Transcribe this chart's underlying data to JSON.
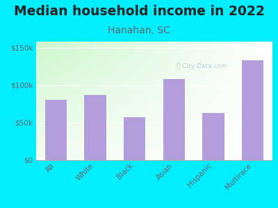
{
  "title": "Median household income in 2022",
  "subtitle": "Hanahan, SC",
  "categories": [
    "All",
    "White",
    "Black",
    "Asian",
    "Hispanic",
    "Multirace"
  ],
  "values": [
    80000,
    87000,
    57000,
    108000,
    63000,
    133000
  ],
  "bar_color": "#b39ddb",
  "background_outer": "#00eeff",
  "title_fontsize": 13.5,
  "subtitle_fontsize": 10,
  "subtitle_color": "#666666",
  "title_color": "#222222",
  "yticks": [
    0,
    50000,
    100000,
    150000
  ],
  "ytick_labels": [
    "$0",
    "$50k",
    "$100k",
    "$150k"
  ],
  "ylim": [
    0,
    158000
  ],
  "tick_color": "#666666",
  "watermark": "City-Data.com"
}
